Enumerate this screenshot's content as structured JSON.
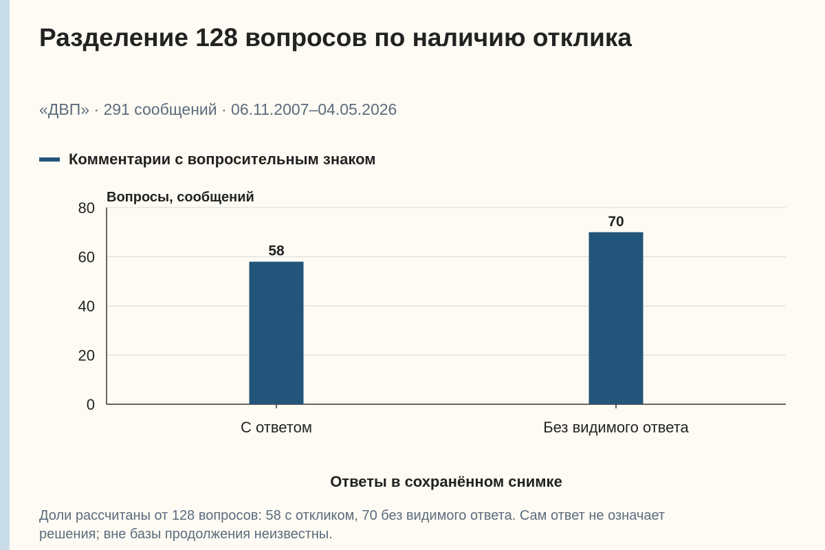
{
  "header": {
    "title": "Разделение 128 вопросов по наличию отклика",
    "subtitle": "«ДВП» · 291 сообщений · 06.11.2007–04.05.2026"
  },
  "legend": {
    "label": "Комментарии с вопросительным знаком"
  },
  "chart_data": {
    "type": "bar",
    "title": "Разделение 128 вопросов по наличию отклика",
    "ylabel": "Вопросы, сообщений",
    "xlabel": "Ответы в сохранённом снимке",
    "categories": [
      "С ответом",
      "Без видимого ответа"
    ],
    "series": [
      {
        "name": "Комментарии с вопросительным знаком",
        "values": [
          58,
          70
        ]
      }
    ],
    "data_labels": [
      "58",
      "70"
    ],
    "ylim": [
      0,
      80
    ],
    "yticks": [
      0,
      20,
      40,
      60,
      80
    ],
    "grid": true,
    "legend_position": "top-left",
    "colors": {
      "bar": "#23557a",
      "grid": "#d9d9d9",
      "axis": "#333333"
    }
  },
  "footnote": "Доли рассчитаны от 128 вопросов: 58 с откликом, 70 без видимого ответа. Сам ответ не означает решения; вне базы продолжения неизвестны."
}
